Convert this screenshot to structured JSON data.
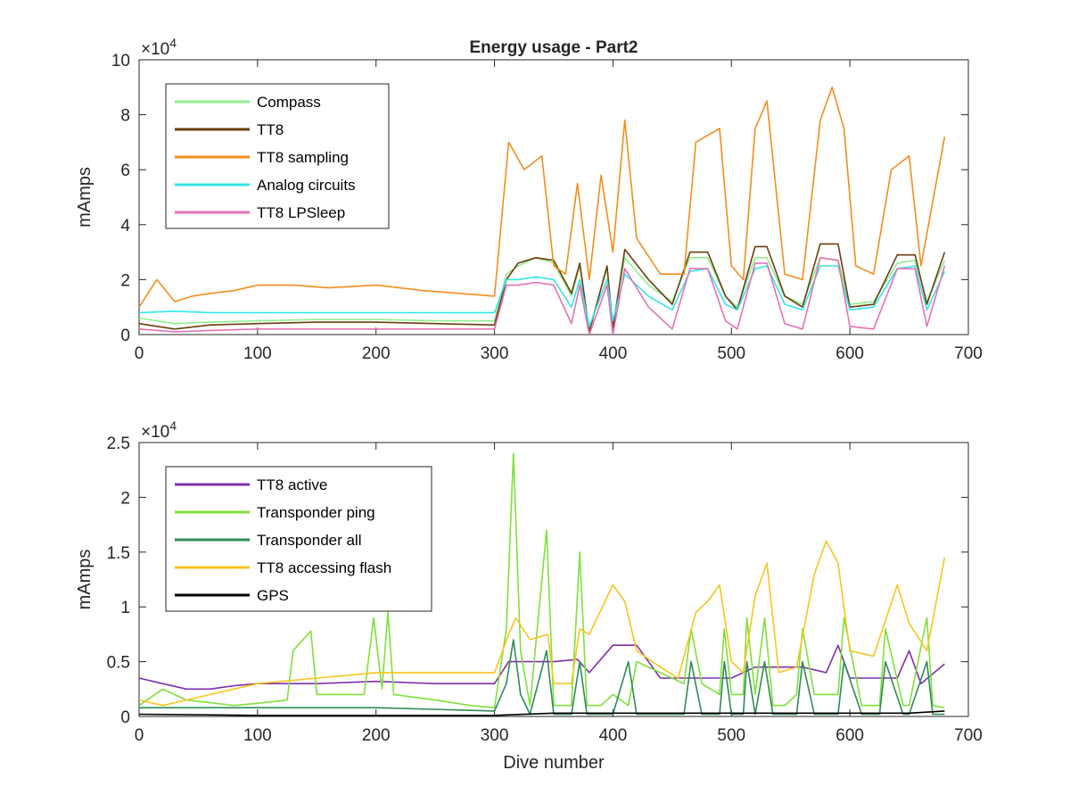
{
  "chart_data": [
    {
      "type": "line",
      "title": "Energy usage - Part2",
      "xlabel": "",
      "ylabel": "mAmps",
      "xlim": [
        0,
        700
      ],
      "ylim": [
        0,
        100000
      ],
      "y_exponent": "×10^4",
      "x_ticks": [
        "0",
        "100",
        "200",
        "300",
        "400",
        "500",
        "600",
        "700"
      ],
      "y_ticks": [
        "0",
        "2",
        "4",
        "6",
        "8",
        "10"
      ],
      "legend_position": "top-left",
      "series": [
        {
          "name": "Compass",
          "color": "#90ee90",
          "x": [
            0,
            30,
            60,
            100,
            150,
            200,
            250,
            300,
            310,
            320,
            335,
            350,
            365,
            372,
            380,
            395,
            400,
            410,
            430,
            450,
            465,
            480,
            495,
            505,
            520,
            530,
            545,
            560,
            575,
            590,
            600,
            620,
            640,
            655,
            665,
            680
          ],
          "y": [
            6000,
            4000,
            4500,
            5000,
            5500,
            5500,
            5000,
            5000,
            22000,
            25000,
            28000,
            26000,
            14000,
            25000,
            2000,
            24000,
            4000,
            28000,
            18000,
            12000,
            28000,
            28000,
            14000,
            10000,
            28000,
            28000,
            14000,
            11000,
            28000,
            27000,
            11000,
            12000,
            26000,
            27000,
            12000,
            27000
          ]
        },
        {
          "name": "TT8",
          "color": "#6b3e0f",
          "x": [
            0,
            30,
            60,
            100,
            150,
            200,
            250,
            300,
            310,
            320,
            335,
            350,
            365,
            372,
            380,
            395,
            400,
            410,
            430,
            450,
            465,
            480,
            495,
            505,
            520,
            530,
            545,
            560,
            575,
            590,
            600,
            620,
            640,
            655,
            665,
            680
          ],
          "y": [
            4000,
            2000,
            3500,
            4000,
            4500,
            4500,
            4000,
            3500,
            20000,
            26000,
            28000,
            27000,
            15000,
            26000,
            1000,
            25000,
            2000,
            31000,
            20000,
            11000,
            30000,
            30000,
            14000,
            9000,
            32000,
            32000,
            14000,
            10000,
            33000,
            33000,
            10000,
            11000,
            29000,
            29000,
            11000,
            30000
          ]
        },
        {
          "name": "TT8 sampling",
          "color": "#f28e1c",
          "x": [
            0,
            15,
            30,
            45,
            60,
            80,
            100,
            130,
            160,
            200,
            240,
            270,
            300,
            312,
            325,
            340,
            350,
            360,
            370,
            380,
            390,
            400,
            410,
            420,
            440,
            460,
            470,
            490,
            500,
            510,
            520,
            530,
            545,
            560,
            575,
            585,
            595,
            605,
            620,
            635,
            650,
            660,
            680
          ],
          "y": [
            10000,
            20000,
            12000,
            14000,
            15000,
            16000,
            18000,
            18000,
            17000,
            18000,
            16000,
            15000,
            14000,
            70000,
            60000,
            65000,
            25000,
            22000,
            55000,
            20000,
            58000,
            30000,
            78000,
            35000,
            22000,
            22000,
            70000,
            75000,
            25000,
            20000,
            75000,
            85000,
            22000,
            20000,
            78000,
            90000,
            75000,
            25000,
            22000,
            60000,
            65000,
            25000,
            72000
          ]
        },
        {
          "name": "Analog circuits",
          "color": "#33e6e6",
          "x": [
            0,
            30,
            60,
            100,
            150,
            200,
            250,
            300,
            310,
            320,
            335,
            350,
            365,
            372,
            380,
            395,
            400,
            410,
            430,
            450,
            465,
            480,
            495,
            505,
            520,
            530,
            545,
            560,
            575,
            590,
            600,
            620,
            640,
            655,
            665,
            680
          ],
          "y": [
            8000,
            8500,
            8000,
            8000,
            8000,
            8000,
            8000,
            8000,
            20000,
            20000,
            21000,
            20000,
            10000,
            20000,
            3000,
            20000,
            5000,
            22000,
            14000,
            9000,
            23000,
            24000,
            11000,
            9000,
            24000,
            25000,
            11000,
            9000,
            25000,
            25000,
            9000,
            10000,
            24000,
            25000,
            9000,
            23000
          ]
        },
        {
          "name": "TT8 LPSleep",
          "color": "#e472b5",
          "x": [
            0,
            30,
            60,
            100,
            150,
            200,
            250,
            300,
            310,
            320,
            335,
            350,
            365,
            372,
            380,
            395,
            400,
            410,
            430,
            450,
            465,
            480,
            495,
            505,
            520,
            530,
            545,
            560,
            575,
            590,
            600,
            620,
            640,
            655,
            665,
            680
          ],
          "y": [
            2000,
            1000,
            1500,
            2000,
            2000,
            2000,
            2000,
            2000,
            18000,
            18000,
            19000,
            18000,
            4000,
            18000,
            0,
            18000,
            0,
            24000,
            10000,
            2000,
            24000,
            24000,
            5000,
            2000,
            26000,
            26000,
            4000,
            2000,
            28000,
            27000,
            3000,
            2000,
            24000,
            24000,
            3000,
            25000
          ]
        }
      ]
    },
    {
      "type": "line",
      "title": "",
      "xlabel": "Dive number",
      "ylabel": "mAmps",
      "xlim": [
        0,
        700
      ],
      "ylim": [
        0,
        25000
      ],
      "y_exponent": "×10^4",
      "x_ticks": [
        "0",
        "100",
        "200",
        "300",
        "400",
        "500",
        "600",
        "700"
      ],
      "y_ticks": [
        "0",
        "0.5",
        "1",
        "1.5",
        "2",
        "2.5"
      ],
      "legend_position": "top-left",
      "series": [
        {
          "name": "TT8 active",
          "color": "#7e2fad",
          "x": [
            0,
            20,
            40,
            60,
            80,
            100,
            150,
            200,
            250,
            300,
            312,
            330,
            350,
            370,
            380,
            400,
            420,
            440,
            460,
            480,
            500,
            520,
            540,
            560,
            580,
            590,
            600,
            620,
            640,
            650,
            660,
            680
          ],
          "y": [
            3500,
            3000,
            2500,
            2500,
            2800,
            3000,
            3000,
            3200,
            3000,
            3000,
            5000,
            5000,
            5000,
            5200,
            4000,
            6500,
            6500,
            3500,
            3500,
            3500,
            3500,
            4500,
            4500,
            4500,
            4000,
            6500,
            3500,
            3500,
            3500,
            6000,
            3000,
            4800
          ]
        },
        {
          "name": "Transponder ping",
          "color": "#7fe03a",
          "x": [
            0,
            20,
            40,
            80,
            100,
            125,
            130,
            145,
            150,
            170,
            190,
            198,
            205,
            210,
            215,
            250,
            280,
            300,
            310,
            316,
            322,
            330,
            344,
            350,
            365,
            372,
            378,
            390,
            400,
            413,
            420,
            440,
            460,
            466,
            475,
            490,
            494,
            500,
            510,
            513,
            520,
            528,
            535,
            545,
            555,
            560,
            570,
            590,
            595,
            610,
            625,
            630,
            645,
            650,
            665,
            670,
            680
          ],
          "y": [
            1000,
            2500,
            1500,
            1000,
            1200,
            1500,
            6000,
            7800,
            2000,
            2000,
            2000,
            9000,
            2500,
            9500,
            2000,
            1500,
            1000,
            800,
            8000,
            24000,
            6000,
            1000,
            17000,
            1000,
            1000,
            15000,
            1000,
            1000,
            2000,
            1000,
            5000,
            4000,
            3000,
            8000,
            3000,
            2000,
            8000,
            2000,
            2000,
            9000,
            2000,
            9000,
            1000,
            1000,
            2000,
            8000,
            2000,
            2000,
            9000,
            1000,
            1000,
            8000,
            1000,
            1000,
            9000,
            1000,
            800
          ]
        },
        {
          "name": "Transponder all",
          "color": "#2e8b57",
          "x": [
            0,
            100,
            200,
            300,
            310,
            316,
            322,
            330,
            344,
            350,
            365,
            372,
            378,
            400,
            413,
            420,
            460,
            466,
            475,
            490,
            494,
            500,
            510,
            513,
            520,
            528,
            535,
            555,
            560,
            570,
            590,
            595,
            610,
            625,
            630,
            645,
            650,
            665,
            670,
            680
          ],
          "y": [
            800,
            800,
            800,
            500,
            3000,
            7000,
            2000,
            200,
            6000,
            200,
            200,
            5000,
            200,
            200,
            5000,
            200,
            200,
            5000,
            200,
            200,
            5000,
            200,
            200,
            5000,
            200,
            5000,
            200,
            200,
            5000,
            200,
            200,
            5000,
            200,
            200,
            5000,
            200,
            200,
            5000,
            200,
            200
          ]
        },
        {
          "name": "TT8 accessing flash",
          "color": "#f7c520",
          "x": [
            0,
            20,
            40,
            60,
            80,
            100,
            150,
            200,
            250,
            300,
            312,
            318,
            330,
            345,
            350,
            365,
            372,
            380,
            400,
            410,
            420,
            440,
            455,
            470,
            480,
            490,
            500,
            510,
            520,
            530,
            540,
            555,
            570,
            580,
            590,
            600,
            620,
            640,
            650,
            665,
            680
          ],
          "y": [
            1500,
            1000,
            1500,
            2000,
            2500,
            3000,
            3500,
            4000,
            4000,
            4000,
            7500,
            9000,
            7000,
            7500,
            3000,
            3000,
            8000,
            7500,
            12000,
            10500,
            6000,
            4500,
            3500,
            9500,
            10500,
            12000,
            5000,
            4000,
            11000,
            14000,
            4000,
            4500,
            13000,
            16000,
            14000,
            6000,
            5500,
            12000,
            8500,
            6000,
            14500
          ]
        },
        {
          "name": "GPS",
          "color": "#000000",
          "x": [
            0,
            100,
            200,
            300,
            350,
            400,
            450,
            500,
            550,
            600,
            650,
            680
          ],
          "y": [
            200,
            100,
            100,
            100,
            300,
            300,
            300,
            300,
            300,
            300,
            300,
            500
          ]
        }
      ]
    }
  ]
}
